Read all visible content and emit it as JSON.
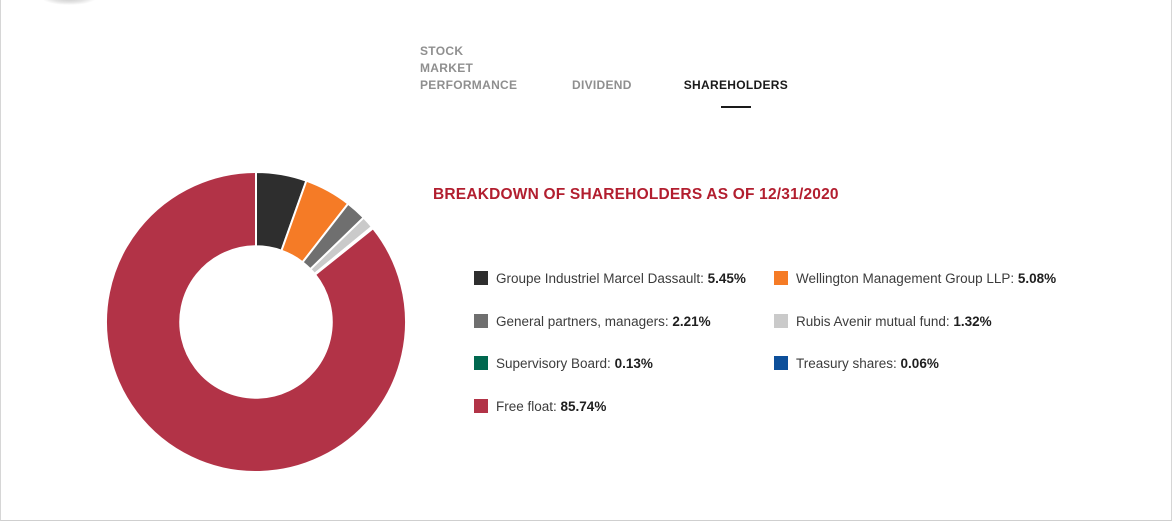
{
  "page": {
    "tabs": [
      {
        "label": "STOCK MARKET PERFORMANCE",
        "active": false
      },
      {
        "label": "DIVIDEND",
        "active": false
      },
      {
        "label": "SHAREHOLDERS",
        "active": true
      }
    ]
  },
  "colors": {
    "title_red": "#b21e2f",
    "tab_inactive": "#8f8f8f",
    "tab_active": "#1a1a1a",
    "page_border": "#d6d6d6",
    "slice_stroke": "#ffffff"
  },
  "chart_data": {
    "type": "pie",
    "donut": true,
    "inner_radius_ratio": 0.505,
    "start_angle_deg": 0,
    "direction": "clockwise",
    "title": "BREAKDOWN OF SHAREHOLDERS AS OF 12/31/2020",
    "legend_position": "right",
    "value_suffix": "%",
    "slices": [
      {
        "label": "Groupe Industriel Marcel Dassault",
        "value": 5.45,
        "display": "5.45%",
        "color": "#2e2e2e"
      },
      {
        "label": "Wellington Management Group LLP",
        "value": 5.08,
        "display": "5.08%",
        "color": "#f57b26"
      },
      {
        "label": "General partners, managers",
        "value": 2.21,
        "display": "2.21%",
        "color": "#6f6f6f"
      },
      {
        "label": "Rubis Avenir mutual fund",
        "value": 1.32,
        "display": "1.32%",
        "color": "#cacaca"
      },
      {
        "label": "Supervisory Board",
        "value": 0.13,
        "display": "0.13%",
        "color": "#00684f"
      },
      {
        "label": "Treasury shares",
        "value": 0.06,
        "display": "0.06%",
        "color": "#0d4f9a"
      },
      {
        "label": "Free float",
        "value": 85.74,
        "display": "85.74%",
        "color": "#b23347"
      }
    ]
  }
}
